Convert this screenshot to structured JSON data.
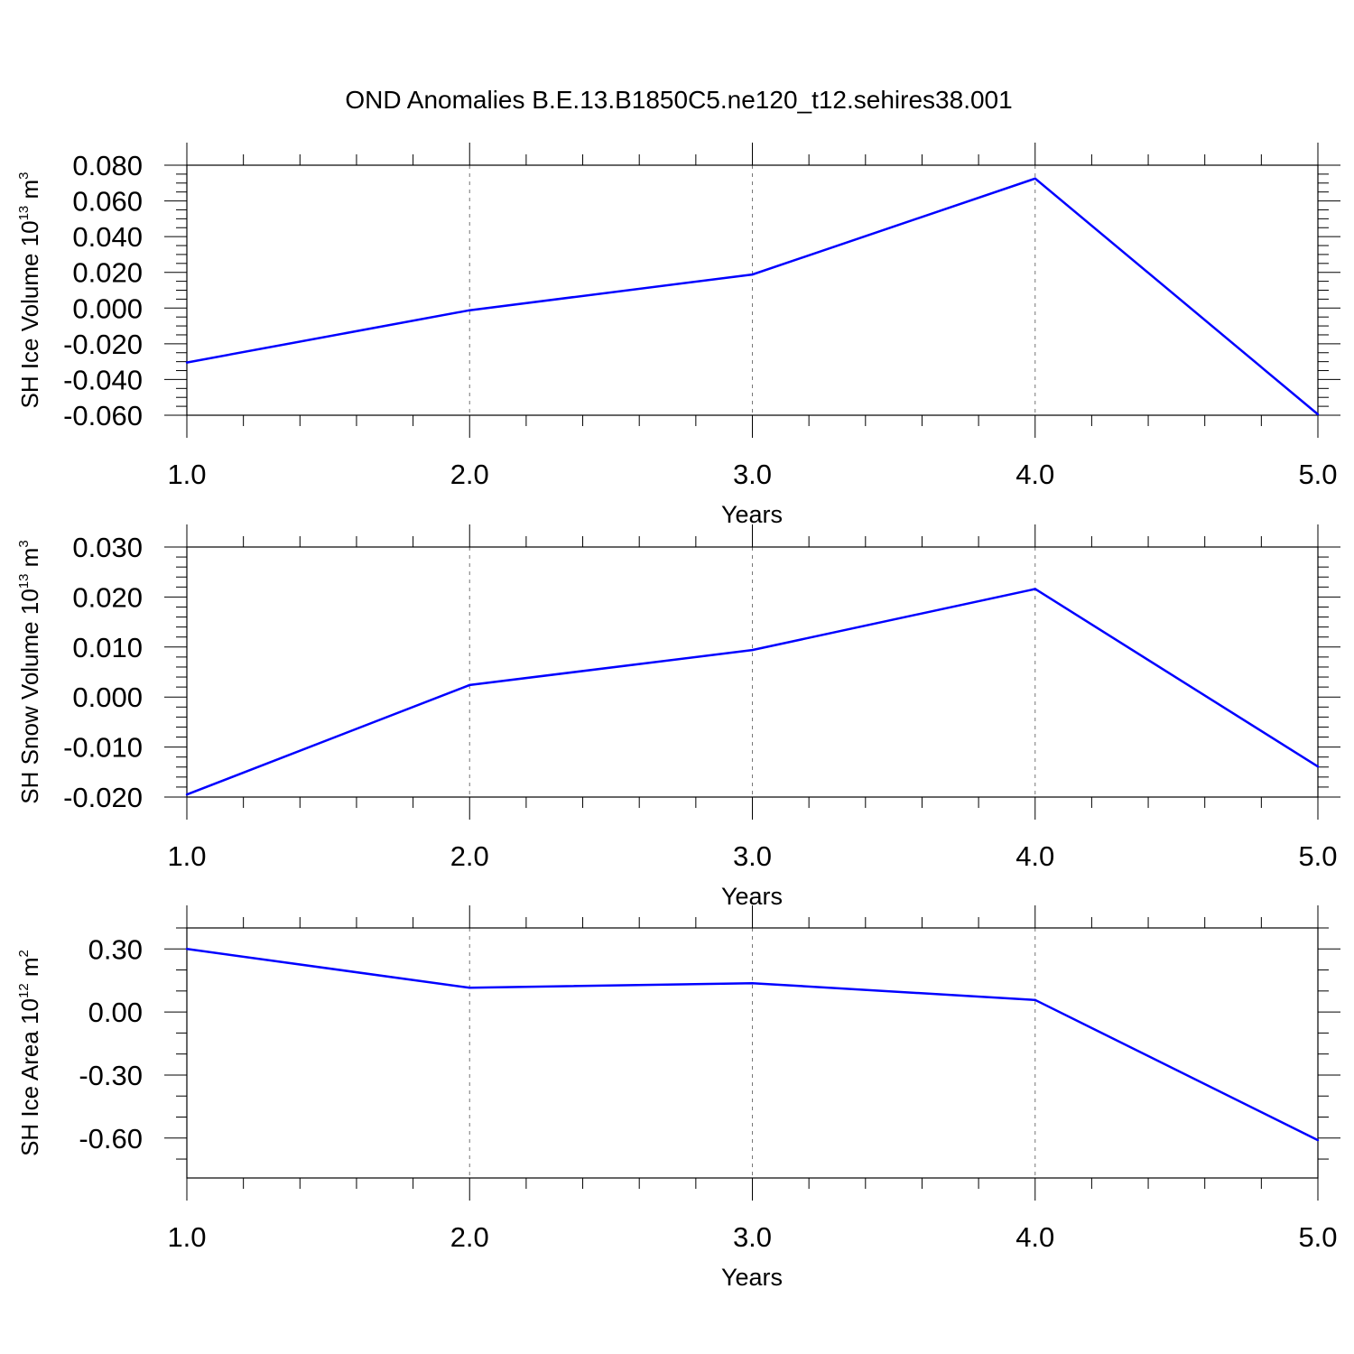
{
  "title": "OND Anomalies B.E.13.B1850C5.ne120_t12.sehires38.001",
  "chart_data": [
    {
      "type": "line",
      "id": "ice-volume",
      "xlabel": "Years",
      "ylabel_prefix": "SH Ice Volume 10",
      "ylabel_exp": "13",
      "ylabel_unit": " m",
      "ylabel_unit_exp": "3",
      "x": [
        1.0,
        2.0,
        3.0,
        4.0,
        5.0
      ],
      "xlim": [
        1.0,
        5.0
      ],
      "xticks": [
        1.0,
        2.0,
        3.0,
        4.0,
        5.0
      ],
      "xtick_labels": [
        "1.0",
        "2.0",
        "3.0",
        "4.0",
        "5.0"
      ],
      "ylim": [
        -0.06,
        0.08
      ],
      "yticks": [
        -0.06,
        -0.04,
        -0.02,
        0.0,
        0.02,
        0.04,
        0.06,
        0.08
      ],
      "ytick_labels": [
        "-0.060",
        "-0.040",
        "-0.020",
        "0.000",
        "0.020",
        "0.040",
        "0.060",
        "0.080"
      ],
      "y_minor_step": 0.005,
      "series": [
        {
          "name": "SH Ice Volume",
          "color": "#0000ff",
          "values": [
            -0.0305,
            -0.0012,
            0.0188,
            0.0725,
            -0.0595
          ]
        }
      ]
    },
    {
      "type": "line",
      "id": "snow-volume",
      "xlabel": "Years",
      "ylabel_prefix": "SH Snow Volume 10",
      "ylabel_exp": "13",
      "ylabel_unit": " m",
      "ylabel_unit_exp": "3",
      "x": [
        1.0,
        2.0,
        3.0,
        4.0,
        5.0
      ],
      "xlim": [
        1.0,
        5.0
      ],
      "xticks": [
        1.0,
        2.0,
        3.0,
        4.0,
        5.0
      ],
      "xtick_labels": [
        "1.0",
        "2.0",
        "3.0",
        "4.0",
        "5.0"
      ],
      "ylim": [
        -0.02,
        0.03
      ],
      "yticks": [
        -0.02,
        -0.01,
        0.0,
        0.01,
        0.02,
        0.03
      ],
      "ytick_labels": [
        "-0.020",
        "-0.010",
        "0.000",
        "0.010",
        "0.020",
        "0.030"
      ],
      "y_minor_step": 0.002,
      "series": [
        {
          "name": "SH Snow Volume",
          "color": "#0000ff",
          "values": [
            -0.0195,
            0.0024,
            0.0094,
            0.0216,
            -0.0139
          ]
        }
      ]
    },
    {
      "type": "line",
      "id": "ice-area",
      "xlabel": "Years",
      "ylabel_prefix": "SH Ice Area 10",
      "ylabel_exp": "12",
      "ylabel_unit": " m",
      "ylabel_unit_exp": "2",
      "x": [
        1.0,
        2.0,
        3.0,
        4.0,
        5.0
      ],
      "xlim": [
        1.0,
        5.0
      ],
      "xticks": [
        1.0,
        2.0,
        3.0,
        4.0,
        5.0
      ],
      "xtick_labels": [
        "1.0",
        "2.0",
        "3.0",
        "4.0",
        "5.0"
      ],
      "ylim": [
        -0.79,
        0.4
      ],
      "yticks": [
        -0.6,
        -0.3,
        0.0,
        0.3
      ],
      "ytick_labels": [
        "-0.60",
        "-0.30",
        "0.00",
        "0.30"
      ],
      "y_minor_step": 0.1,
      "series": [
        {
          "name": "SH Ice Area",
          "color": "#0000ff",
          "values": [
            0.3,
            0.115,
            0.137,
            0.057,
            -0.61
          ]
        }
      ]
    }
  ]
}
